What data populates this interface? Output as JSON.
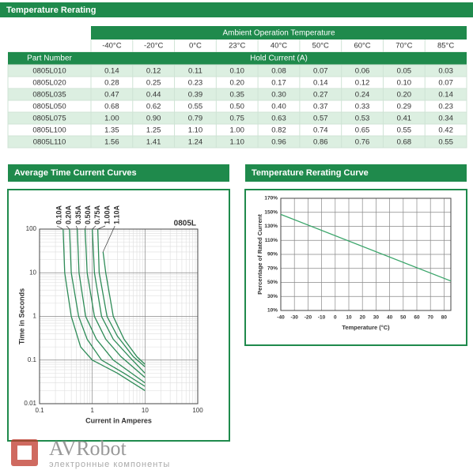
{
  "header": {
    "title": "Temperature Rerating"
  },
  "table": {
    "group_header": "Ambient Operation Temperature",
    "columns": [
      "-40°C",
      "-20°C",
      "0°C",
      "23°C",
      "40°C",
      "50°C",
      "60°C",
      "70°C",
      "85°C"
    ],
    "row_header": "Part Number",
    "value_header": "Hold Current (A)",
    "rows": [
      [
        "0805L010",
        "0.14",
        "0.12",
        "0.11",
        "0.10",
        "0.08",
        "0.07",
        "0.06",
        "0.05",
        "0.03"
      ],
      [
        "0805L020",
        "0.28",
        "0.25",
        "0.23",
        "0.20",
        "0.17",
        "0.14",
        "0.12",
        "0.10",
        "0.07"
      ],
      [
        "0805L035",
        "0.47",
        "0.44",
        "0.39",
        "0.35",
        "0.30",
        "0.27",
        "0.24",
        "0.20",
        "0.14"
      ],
      [
        "0805L050",
        "0.68",
        "0.62",
        "0.55",
        "0.50",
        "0.40",
        "0.37",
        "0.33",
        "0.29",
        "0.23"
      ],
      [
        "0805L075",
        "1.00",
        "0.90",
        "0.79",
        "0.75",
        "0.63",
        "0.57",
        "0.53",
        "0.41",
        "0.34"
      ],
      [
        "0805L100",
        "1.35",
        "1.25",
        "1.10",
        "1.00",
        "0.82",
        "0.74",
        "0.65",
        "0.55",
        "0.42"
      ],
      [
        "0805L110",
        "1.56",
        "1.41",
        "1.24",
        "1.10",
        "0.96",
        "0.86",
        "0.76",
        "0.68",
        "0.55"
      ]
    ]
  },
  "chart_data": [
    {
      "type": "line",
      "title": "Average Time Current Curves",
      "xlabel": "Current in Amperes",
      "ylabel": "Time in Seconds",
      "annotation": "0805L",
      "xscale": "log",
      "yscale": "log",
      "xlim": [
        0.1,
        100
      ],
      "ylim": [
        0.01,
        100
      ],
      "xticks": [
        0.1,
        1,
        10,
        100
      ],
      "yticks": [
        0.01,
        0.1,
        1,
        10,
        100
      ],
      "grid": true,
      "series": [
        {
          "name": "0.10A",
          "color": "#2e8b57",
          "x": [
            0.28,
            0.3,
            0.4,
            0.6,
            1,
            3,
            10
          ],
          "values": [
            100,
            10,
            1,
            0.2,
            0.1,
            0.05,
            0.02
          ]
        },
        {
          "name": "0.20A",
          "color": "#2e8b57",
          "x": [
            0.37,
            0.4,
            0.55,
            0.8,
            1.5,
            4,
            10
          ],
          "values": [
            100,
            10,
            1,
            0.3,
            0.1,
            0.05,
            0.025
          ]
        },
        {
          "name": "0.35A",
          "color": "#2e8b57",
          "x": [
            0.52,
            0.56,
            0.75,
            1.2,
            2.5,
            10
          ],
          "values": [
            100,
            10,
            1,
            0.3,
            0.1,
            0.03
          ]
        },
        {
          "name": "0.50A",
          "color": "#2e8b57",
          "x": [
            0.73,
            0.8,
            1.1,
            1.8,
            3.5,
            10
          ],
          "values": [
            100,
            10,
            1,
            0.3,
            0.12,
            0.04
          ]
        },
        {
          "name": "0.75A",
          "color": "#2e8b57",
          "x": [
            1.0,
            1.1,
            1.5,
            2.5,
            5,
            10
          ],
          "values": [
            100,
            10,
            1,
            0.3,
            0.12,
            0.05
          ]
        },
        {
          "name": "1.00A",
          "color": "#2e8b57",
          "x": [
            1.27,
            1.35,
            1.9,
            3,
            6,
            10
          ],
          "values": [
            100,
            10,
            1,
            0.35,
            0.12,
            0.07
          ]
        },
        {
          "name": "1.10A",
          "color": "#2e8b57",
          "x": [
            1.6,
            1.8,
            2.5,
            4,
            7,
            10
          ],
          "values": [
            30,
            10,
            1,
            0.3,
            0.12,
            0.08
          ]
        }
      ]
    },
    {
      "type": "line",
      "title": "Temperature Rerating Curve",
      "xlabel": "Temperature (°C)",
      "ylabel": "Percentage of Rated Current",
      "xlim": [
        -40,
        85
      ],
      "ylim": [
        10,
        170
      ],
      "xticks": [
        -40,
        -30,
        -20,
        -10,
        0,
        10,
        20,
        30,
        40,
        50,
        60,
        70,
        80
      ],
      "yticks": [
        {
          "value": 10,
          "label": "10%"
        },
        {
          "value": 30,
          "label": "30%"
        },
        {
          "value": 50,
          "label": "50%"
        },
        {
          "value": 70,
          "label": "70%"
        },
        {
          "value": 90,
          "label": "90%"
        },
        {
          "value": 110,
          "label": "110%"
        },
        {
          "value": 130,
          "label": "130%"
        },
        {
          "value": 150,
          "label": "150%"
        },
        {
          "value": 170,
          "label": "170%"
        }
      ],
      "grid": true,
      "series": [
        {
          "color": "#3aa56a",
          "x": [
            -40,
            85
          ],
          "values": [
            147,
            52
          ]
        }
      ]
    }
  ],
  "watermark": {
    "brand": "AVRobot",
    "tagline": "электронные компоненты"
  }
}
